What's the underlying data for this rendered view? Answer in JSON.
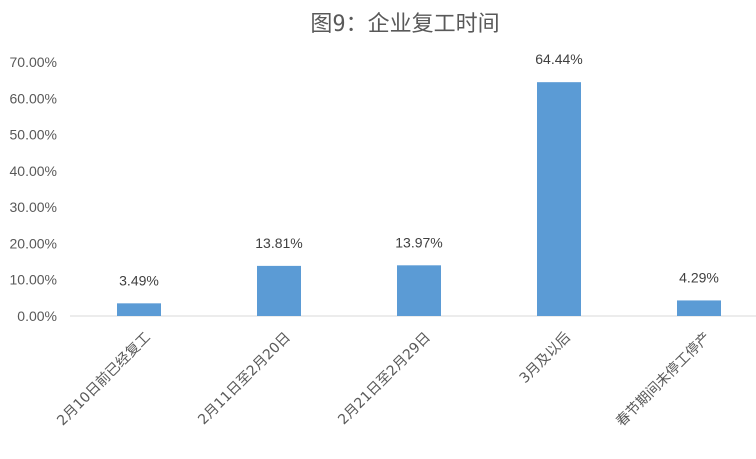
{
  "chart_data": {
    "type": "bar",
    "title": "图9：企业复工时间",
    "categories": [
      "2月10日前已经复工",
      "2月11日至2月20日",
      "2月21日至2月29日",
      "3月及以后",
      "春节期间未停工停产"
    ],
    "values": [
      3.49,
      13.81,
      13.97,
      64.44,
      4.29
    ],
    "data_labels": [
      "3.49%",
      "13.81%",
      "13.97%",
      "64.44%",
      "4.29%"
    ],
    "y_ticks": [
      "0.00%",
      "10.00%",
      "20.00%",
      "30.00%",
      "40.00%",
      "50.00%",
      "60.00%",
      "70.00%"
    ],
    "ylim": [
      0,
      70
    ],
    "xlabel": "",
    "ylabel": "",
    "grid": false,
    "legend": "none",
    "bar_color": "#5B9BD5"
  }
}
